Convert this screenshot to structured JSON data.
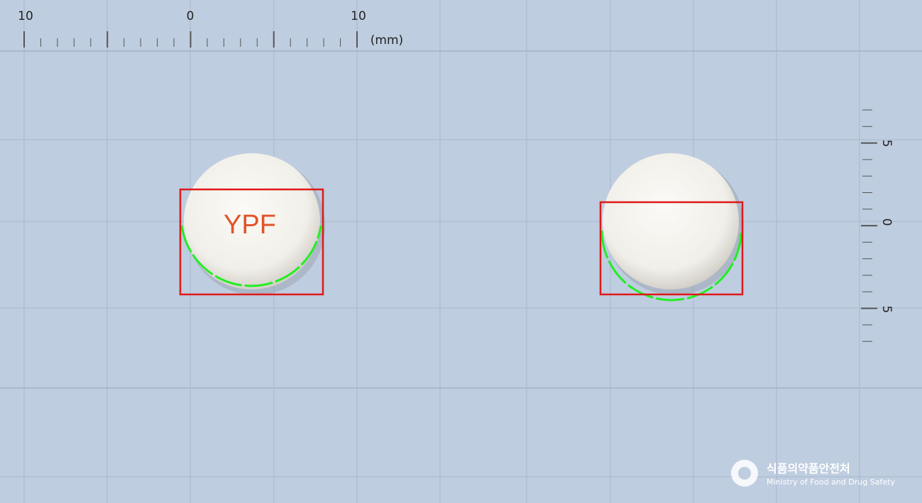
{
  "ruler": {
    "top_labels": [
      "10",
      "0",
      "10"
    ],
    "unit": "(mm)",
    "side_labels": [
      "5",
      "0",
      "5"
    ]
  },
  "pill_front": {
    "imprint": "YPF"
  },
  "logo": {
    "korean": "식품의약품안전처",
    "english": "Ministry of Food and Drug Safety"
  }
}
